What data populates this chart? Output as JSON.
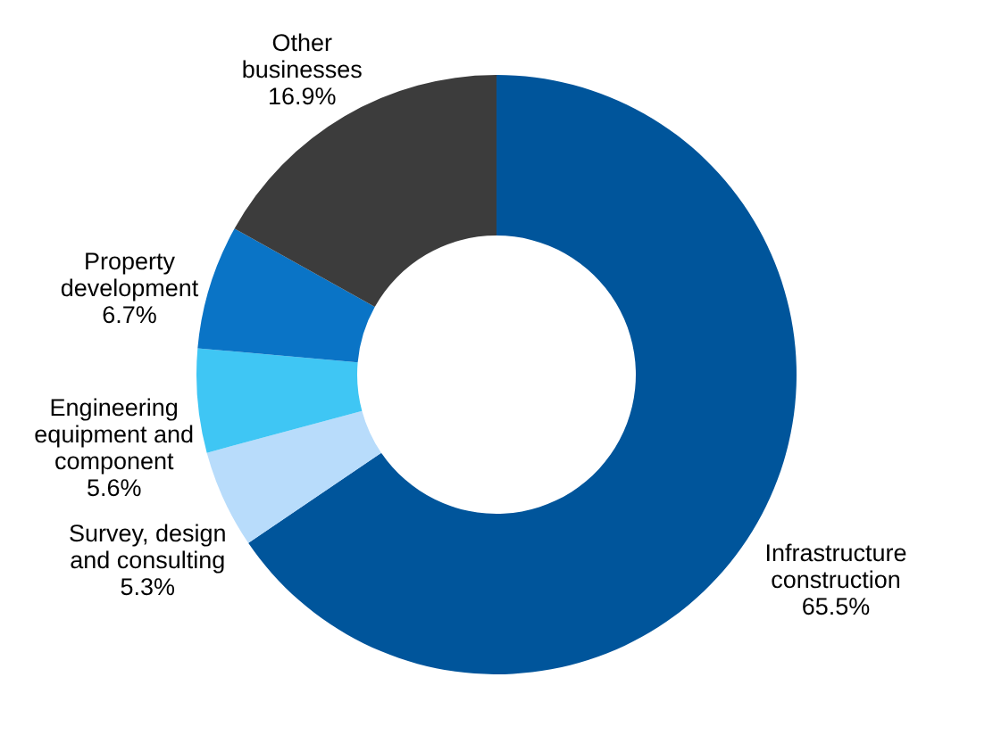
{
  "chart_data": {
    "type": "donut",
    "categories": [
      "Infrastructure construction",
      "Survey, design and consulting",
      "Engineering equipment and component",
      "Property development",
      "Other businesses"
    ],
    "values": [
      65.5,
      5.3,
      5.6,
      6.7,
      16.9
    ],
    "value_labels": [
      "65.5%",
      "5.3%",
      "5.6%",
      "6.7%",
      "16.9%"
    ],
    "colors": [
      "#00559b",
      "#b8dcfb",
      "#3fc6f4",
      "#0a74c6",
      "#3c3c3c"
    ]
  }
}
